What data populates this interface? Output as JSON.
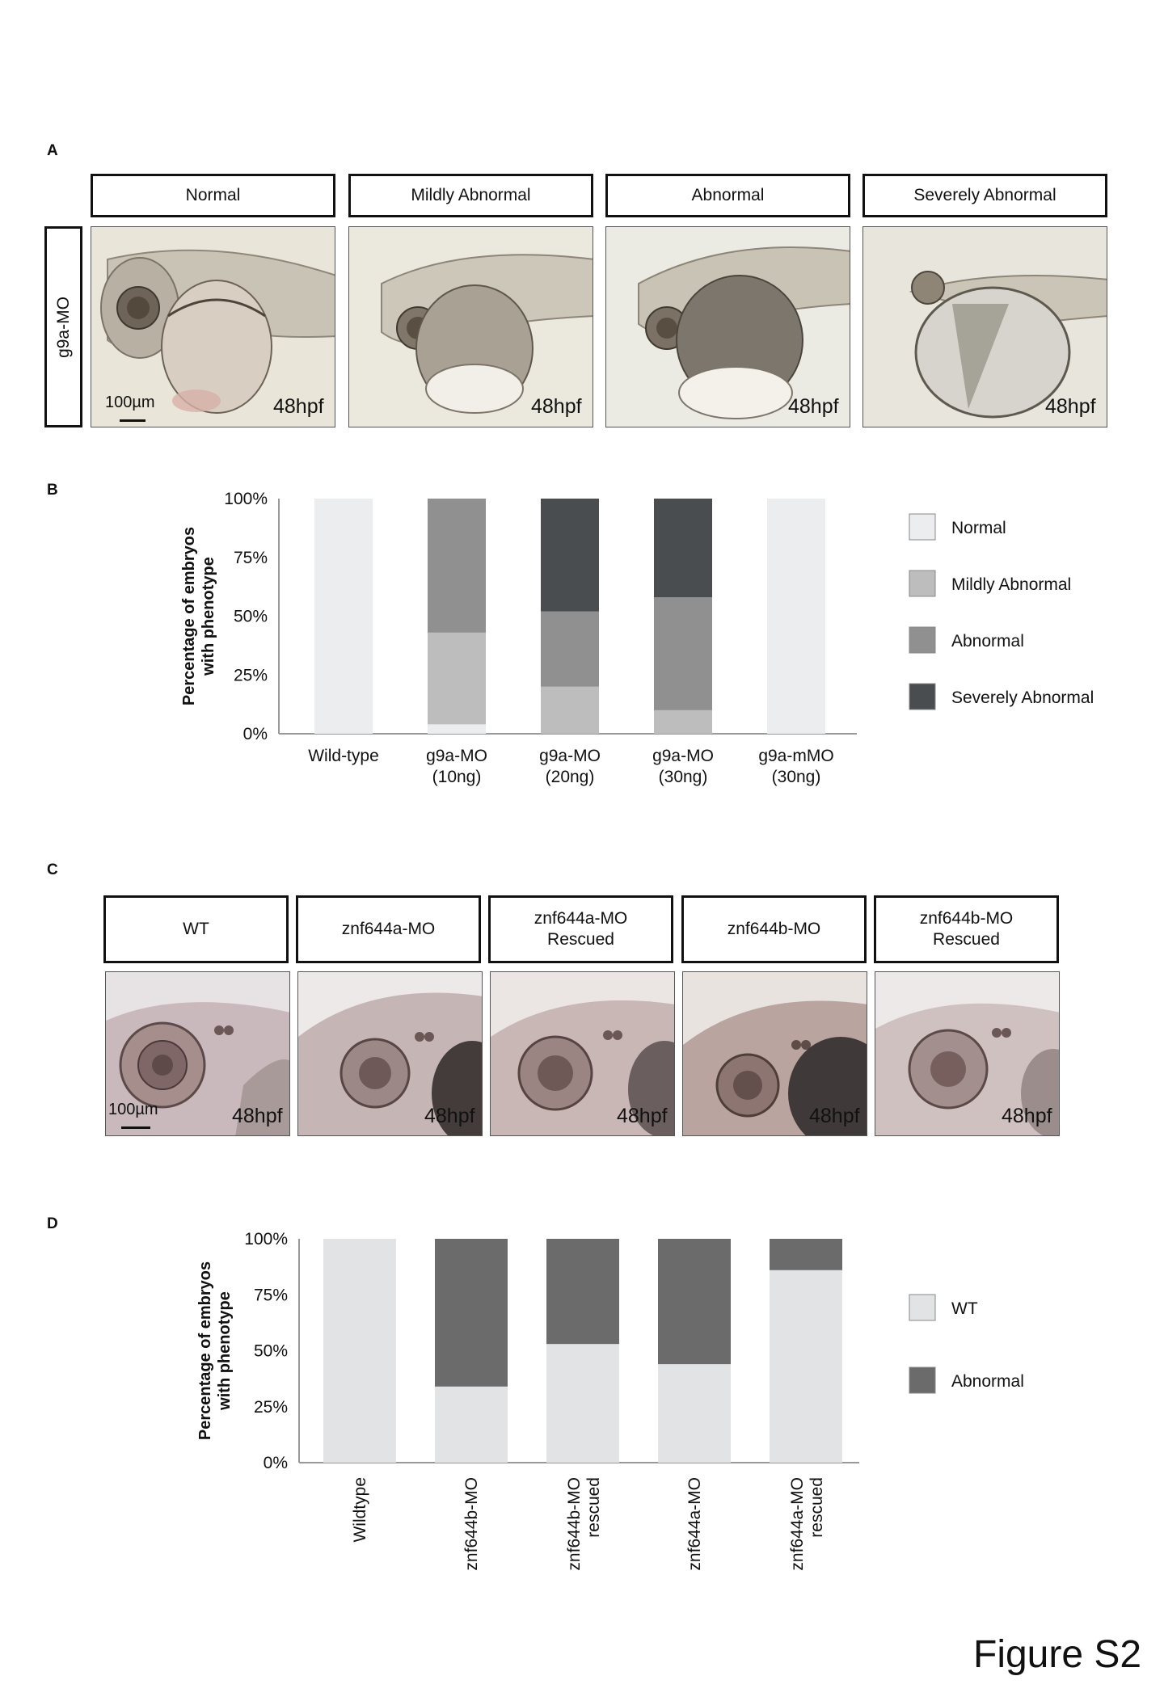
{
  "figure_title": "Figure S2",
  "panelA": {
    "letter": "A",
    "row_label": "g9a-MO",
    "headers": [
      "Normal",
      "Mildly Abnormal",
      "Abnormal",
      "Severely Abnormal"
    ],
    "stage": "48hpf",
    "scale": "100µm"
  },
  "panelB": {
    "letter": "B"
  },
  "panelC": {
    "letter": "C",
    "headers": [
      [
        "WT",
        ""
      ],
      [
        "znf644a-MO",
        ""
      ],
      [
        "znf644a-MO",
        "Rescued"
      ],
      [
        "znf644b-MO",
        ""
      ],
      [
        "znf644b-MO",
        "Rescued"
      ]
    ],
    "stage": "48hpf",
    "scale": "100µm"
  },
  "panelD": {
    "letter": "D"
  },
  "colors": {
    "normal": "#ebedef",
    "mildly_abnormal": "#bdbdbd",
    "abnormal": "#909090",
    "severely_abnormal": "#4a4d4f",
    "wt": "#e1e3e5",
    "abnormal_d": "#6b6b6b"
  },
  "chart_data": [
    {
      "type": "bar",
      "stacked": true,
      "ylabel": "Percentage of embryos with phenotype",
      "ylim": [
        0,
        100
      ],
      "yticks": [
        "0%",
        "25%",
        "50%",
        "75%",
        "100%"
      ],
      "categories": [
        [
          "Wild-type",
          ""
        ],
        [
          "g9a-MO",
          "(10ng)"
        ],
        [
          "g9a-MO",
          "(20ng)"
        ],
        [
          "g9a-MO",
          "(30ng)"
        ],
        [
          "g9a-mMO",
          "(30ng)"
        ]
      ],
      "series": [
        {
          "name": "Normal",
          "color": "#ebedef",
          "values": [
            100,
            4,
            0,
            0,
            100
          ]
        },
        {
          "name": "Mildly Abnormal",
          "color": "#bdbdbd",
          "values": [
            0,
            39,
            20,
            10,
            0
          ]
        },
        {
          "name": "Abnormal",
          "color": "#909090",
          "values": [
            0,
            57,
            32,
            48,
            0
          ]
        },
        {
          "name": "Severely Abnormal",
          "color": "#4a4d4f",
          "values": [
            0,
            0,
            48,
            42,
            0
          ]
        }
      ],
      "legend": "right"
    },
    {
      "type": "bar",
      "stacked": true,
      "ylabel": "Percentage of embryos with phenotype",
      "ylim": [
        0,
        100
      ],
      "yticks": [
        "0%",
        "25%",
        "50%",
        "75%",
        "100%"
      ],
      "categories": [
        [
          "Wildtype",
          ""
        ],
        [
          "znf644b-MO",
          ""
        ],
        [
          "znf644b-MO",
          "rescued"
        ],
        [
          "znf644a-MO",
          ""
        ],
        [
          "znf644a-MO",
          "rescued"
        ]
      ],
      "series": [
        {
          "name": "WT",
          "color": "#e1e3e5",
          "values": [
            100,
            34,
            53,
            44,
            86
          ]
        },
        {
          "name": "Abnormal",
          "color": "#6b6b6b",
          "values": [
            0,
            66,
            47,
            56,
            14
          ]
        }
      ],
      "legend": "right"
    }
  ]
}
